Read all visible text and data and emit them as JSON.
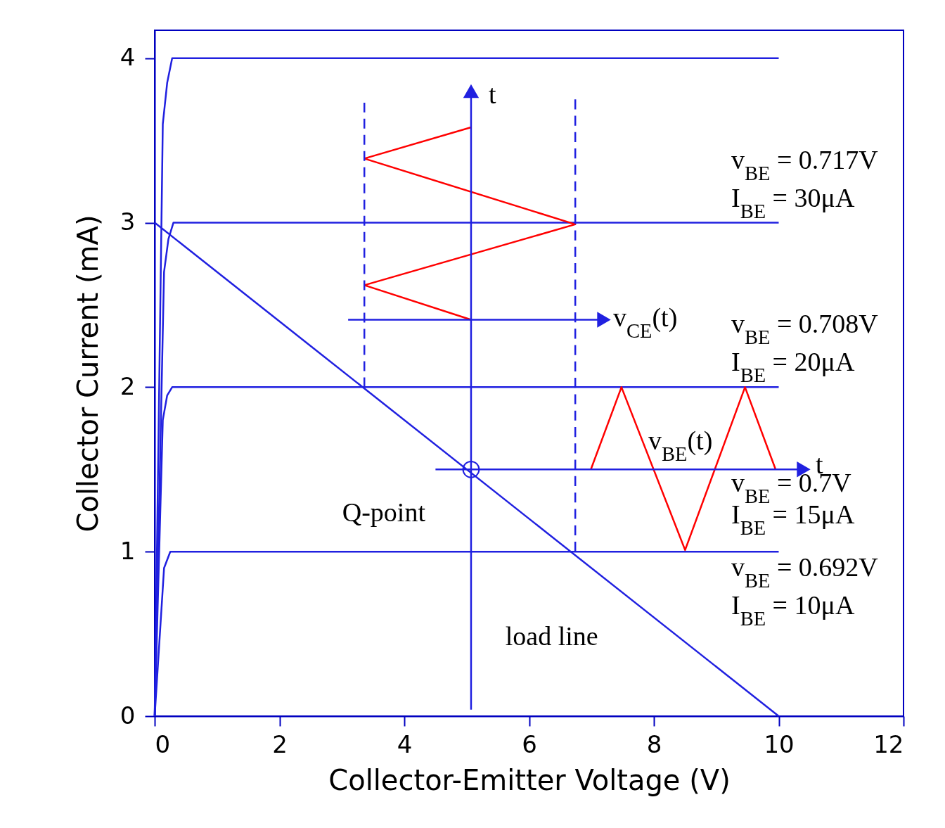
{
  "chart_data": {
    "type": "line",
    "xlabel": "Collector-Emitter Voltage (V)",
    "ylabel": "Collector Current (mA)",
    "xlim": [
      0,
      12
    ],
    "xticks": [
      0,
      2,
      4,
      6,
      8,
      10,
      12
    ],
    "ylim": [
      0,
      4.17
    ],
    "yticks": [
      0,
      1,
      2,
      3,
      4
    ],
    "grid": false,
    "line_style": "solid",
    "series": [
      {
        "color": "#2020e0",
        "x": [
          0,
          0.13,
          0.2,
          0.28,
          10
        ],
        "values": [
          0,
          3.6,
          3.85,
          4,
          4
        ]
      },
      {
        "color": "#2020e0",
        "x": [
          0,
          0.15,
          0.22,
          0.3,
          10
        ],
        "values": [
          0,
          2.7,
          2.9,
          3,
          3
        ]
      },
      {
        "color": "#2020e0",
        "x": [
          0,
          0.13,
          0.2,
          0.28,
          10
        ],
        "values": [
          0,
          1.8,
          1.95,
          2,
          2
        ]
      },
      {
        "color": "#2020e0",
        "x": [
          0,
          0.15,
          0.25,
          10
        ],
        "values": [
          0,
          0.9,
          1,
          1
        ]
      },
      {
        "color": "#2020e0",
        "x": [
          0,
          10
        ],
        "values": [
          3,
          0
        ]
      },
      {
        "color": "#ff0000",
        "x": [
          5.07,
          3.36,
          6.74,
          3.36,
          5.07
        ],
        "values": [
          3.58,
          3.39,
          2.99,
          2.62,
          2.41
        ]
      },
      {
        "color": "#ff0000",
        "x": [
          6.99,
          7.48,
          8.5,
          9.46,
          9.95
        ],
        "values": [
          1.5,
          2.0,
          1.01,
          2.0,
          1.5
        ]
      },
      {
        "color": "#2020e0",
        "x": [
          3.36,
          3.36
        ],
        "values": [
          2.0,
          3.73
        ],
        "line_style": "dashed"
      },
      {
        "color": "#2020e0",
        "x": [
          6.74,
          6.74
        ],
        "values": [
          1.0,
          3.75
        ],
        "line_style": "dashed"
      },
      {
        "color": "#2020e0",
        "x": [
          5.07,
          5.07
        ],
        "values": [
          0.04,
          3.8
        ],
        "marker": "triangle"
      },
      {
        "color": "#2020e0",
        "x": [
          3.1,
          7.2
        ],
        "values": [
          2.41,
          2.41
        ],
        "marker": "triangle"
      },
      {
        "color": "#2020e0",
        "x": [
          4.5,
          10.4
        ],
        "values": [
          1.5,
          1.5
        ],
        "marker": "triangle"
      },
      {
        "type": "scatter",
        "color": "#2020e0",
        "x": [
          5.07
        ],
        "values": [
          1.5
        ],
        "marker": "circle"
      }
    ],
    "annotations": [
      {
        "text": "v$_{BE}$ = 0.717V",
        "x": 9.6,
        "y": 3
      },
      {
        "text": "I$_{BE}$ = 30μA",
        "x": 9.6,
        "y": 3
      },
      {
        "text": "v$_{BE}$ = 0.708V",
        "x": 9.6,
        "y": 2
      },
      {
        "text": "I$_{BE}$ = 20μA",
        "x": 9.6,
        "y": 2
      },
      {
        "text": "v$_{BE}$ = 0.7V",
        "x": 9.6,
        "y": 1.5
      },
      {
        "text": "I$_{BE}$ = 15μA",
        "x": 9.6,
        "y": 1.5
      },
      {
        "text": "v$_{BE}$ = 0.692V",
        "x": 9.6,
        "y": 1
      },
      {
        "text": "I$_{BE}$ = 10μA",
        "x": 9.6,
        "y": 1
      },
      {
        "text": "t",
        "x": 5.07,
        "y": 3.8
      },
      {
        "text": "v$_{CE}$(t)",
        "x": 7.2,
        "y": 2.41
      },
      {
        "text": "t",
        "x": 10.4,
        "y": 1.5
      },
      {
        "text": "v$_{BE}$(t)",
        "x": 7.91,
        "y": 1.59
      },
      {
        "text": "Q-point",
        "x": 5.07,
        "y": 1.5
      },
      {
        "text": "load line",
        "x": 7.5,
        "y": 0.75
      }
    ]
  }
}
